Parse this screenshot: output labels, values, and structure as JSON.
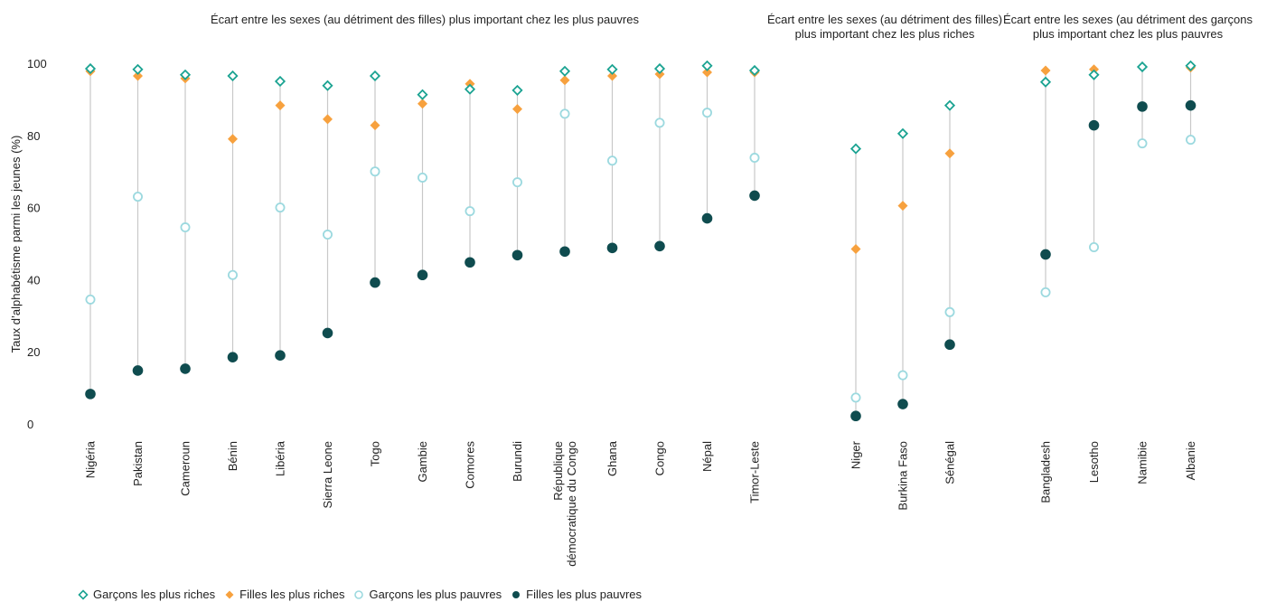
{
  "chart_data": {
    "type": "scatter",
    "ylabel": "Taux d’alphabétisme parmi les jeunes  (%)",
    "ylim": [
      0,
      100
    ],
    "yticks": [
      0,
      20,
      40,
      60,
      80,
      100
    ],
    "group_titles": [
      [
        "Écart entre les sexes (au détriment des filles) plus important chez les plus pauvres"
      ],
      [
        "Écart entre les sexes (au détriment des filles)",
        "plus important chez les plus riches"
      ],
      [
        "Écart entre les sexes (au détriment des garçons",
        "plus important chez les plus pauvres"
      ]
    ],
    "groups": [
      {
        "categories": [
          [
            "Nigéria"
          ],
          [
            "Pakistan"
          ],
          [
            "Cameroun"
          ],
          [
            "Bénin"
          ],
          [
            "Libéria"
          ],
          [
            "Sierra Leone"
          ],
          [
            "Togo"
          ],
          [
            "Gambie"
          ],
          [
            "Comores"
          ],
          [
            "Burundi"
          ],
          [
            "République",
            "démocratique du Congo"
          ],
          [
            "Ghana"
          ],
          [
            "Congo"
          ],
          [
            "Népal"
          ],
          [
            "Timor-Leste"
          ]
        ],
        "richest_boys": [
          98.5,
          98.3,
          96.8,
          96.5,
          95.0,
          93.8,
          96.5,
          91.3,
          92.8,
          92.5,
          97.8,
          98.3,
          98.5,
          99.3,
          98.0
        ],
        "richest_girls": [
          97.8,
          96.5,
          95.8,
          79.0,
          88.3,
          84.5,
          82.8,
          88.8,
          94.3,
          87.3,
          95.3,
          96.5,
          97.0,
          97.5,
          97.5
        ],
        "poorest_boys": [
          34.5,
          63.0,
          54.5,
          41.3,
          60.0,
          52.5,
          70.0,
          68.3,
          59.0,
          67.0,
          86.0,
          73.0,
          83.5,
          86.3,
          73.8
        ],
        "poorest_girls": [
          8.3,
          14.8,
          15.3,
          18.5,
          19.0,
          25.2,
          39.2,
          41.3,
          44.8,
          46.8,
          47.8,
          48.8,
          49.3,
          57.0,
          63.3
        ]
      },
      {
        "categories": [
          [
            "Niger"
          ],
          [
            "Burkina Faso"
          ],
          [
            "Sénégal"
          ]
        ],
        "richest_boys": [
          76.3,
          80.5,
          88.3
        ],
        "richest_girls": [
          48.5,
          60.5,
          75.0
        ],
        "poorest_boys": [
          7.3,
          13.5,
          31.0
        ],
        "poorest_girls": [
          2.2,
          5.5,
          22.0
        ]
      },
      {
        "categories": [
          [
            "Bangladesh"
          ],
          [
            "Lesotho"
          ],
          [
            "Namibie"
          ],
          [
            "Albanie"
          ]
        ],
        "richest_boys": [
          94.8,
          96.8,
          99.0,
          99.3
        ],
        "richest_girls": [
          98.0,
          98.3,
          99.0,
          98.8
        ],
        "poorest_boys": [
          36.5,
          49.0,
          77.8,
          78.8
        ],
        "poorest_girls": [
          47.0,
          82.8,
          88.0,
          88.3
        ]
      }
    ],
    "series": [
      {
        "key": "richest_boys",
        "name": "Garçons les plus riches",
        "marker": "diamond-open",
        "color": "#1ba392"
      },
      {
        "key": "richest_girls",
        "name": "Filles les plus riches",
        "marker": "diamond",
        "color": "#f7a13e"
      },
      {
        "key": "poorest_boys",
        "name": "Garçons les plus pauvres",
        "marker": "circle-open",
        "color": "#9cd9df"
      },
      {
        "key": "poorest_girls",
        "name": "Filles les plus pauvres",
        "marker": "circle",
        "color": "#0f4c4f"
      }
    ],
    "line_color": "#c8c8c8",
    "legend_position": "bottom-left",
    "grid": false
  }
}
